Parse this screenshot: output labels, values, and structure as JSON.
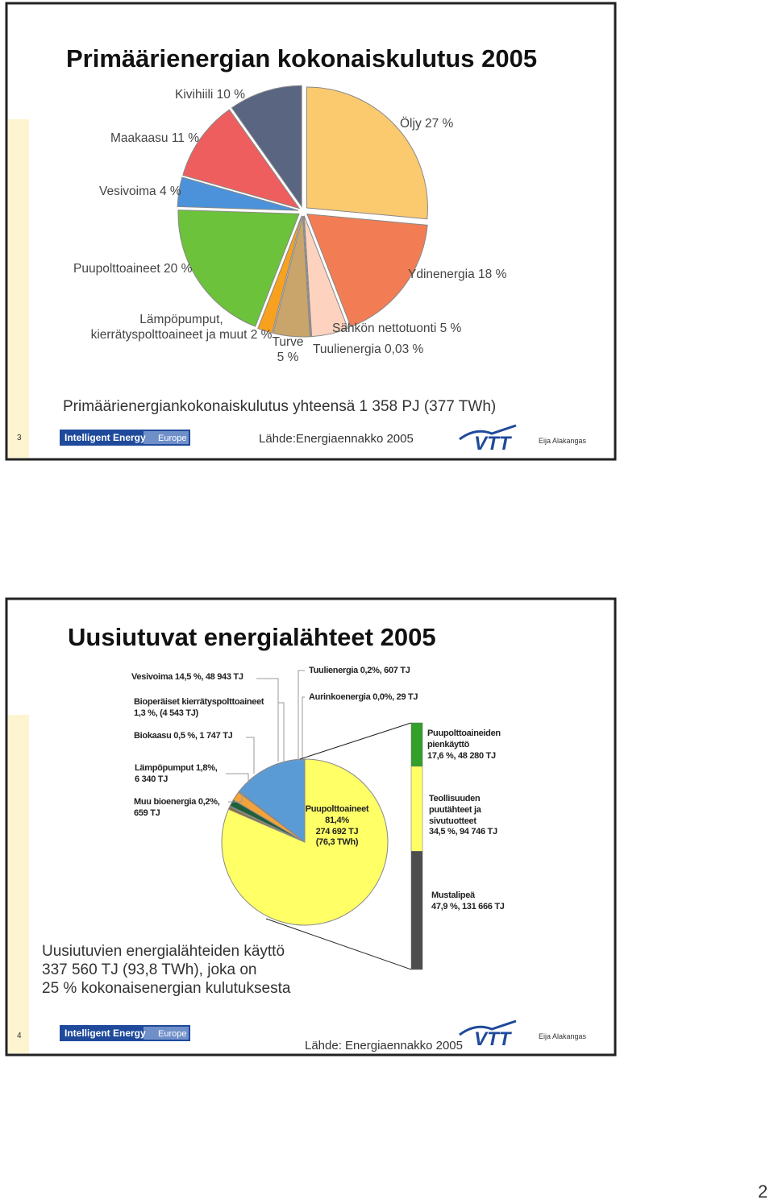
{
  "page_number": "2",
  "slides": [
    {
      "number": "3",
      "source": "Lähde:Energiaennakko 2005",
      "author": "Eija Alakangas",
      "logo": {
        "name": "Intelligent Energy",
        "region": "Europe",
        "brand": "VTT"
      }
    },
    {
      "number": "4",
      "source": "Lähde: Energiaennakko 2005",
      "author": "Eija Alakangas",
      "logo": {
        "name": "Intelligent Energy",
        "region": "Europe",
        "brand": "VTT"
      }
    }
  ],
  "chart_data": [
    {
      "type": "pie",
      "title": "Primäärienergian kokonaiskulutus 2005",
      "subtitle": "Primäärienergiankokonaiskulutus yhteensä  1 358 PJ (377 TWh)",
      "categories": [
        "Öljy 27 %",
        "Ydinenergia 18 %",
        "Sähkön nettotuonti 5 %",
        "Tuulienergia  0,03 %",
        "Turve\n5 %",
        "Lämpöpumput,\nkierrätyspolttoaineet ja muut 2 %",
        "Puupolttoaineet 20  %",
        "Vesivoima 4 %",
        "Maakaasu 11 %",
        "Kivihiili 10 %"
      ],
      "values": [
        27,
        18,
        5,
        0.03,
        5,
        2,
        20,
        4,
        11,
        10
      ],
      "colors": [
        "#fbc96e",
        "#f27d55",
        "#fdd3c0",
        "#ffffff",
        "#c9a46b",
        "#f8a11f",
        "#6cc23a",
        "#4b92da",
        "#ef5e5e",
        "#596581"
      ]
    },
    {
      "type": "pie",
      "title": "Uusiutuvat energialähteet 2005",
      "note": "Uusiutuvien energialähteiden käyttö\n337 560 TJ (93,8 TWh), joka on\n25 % kokonaisenergian kulutuksesta",
      "categories": [
        "Vesivoima 14,5 %, 48 943 TJ",
        "Tuulienergia 0,2%, 607 TJ",
        "Aurinkoenergia  0,0%, 29 TJ",
        "Lämpöpumput 1,8%,\n6 340 TJ",
        "Bioperäiset kierrätyspolttoaineet\n1,3 %, (4 543 TJ)",
        "Muu bioenergia 0,2%,\n659 TJ",
        "Biokaasu  0,5 %, 1 747 TJ",
        "Puupolttoaineet\n81,4%\n274 692 TJ\n(76,3 TWh)"
      ],
      "values": [
        14.5,
        0.2,
        0.0,
        1.8,
        1.3,
        0.2,
        0.5,
        81.4
      ],
      "colors": [
        "#5b9bd5",
        "#c0c0c0",
        "#ffffff",
        "#f4a23a",
        "#1f5f3a",
        "#2e7d32",
        "#8a6d3b",
        "#ffff66"
      ],
      "bar": {
        "categories": [
          "Puupolttoaineiden\npienkäyttö\n17,6 %, 48 280 TJ",
          "Teollisuuden\npuutähteet ja\nsivutuotteet\n34,5 %, 94 746 TJ",
          "Mustalipeä\n47,9 %, 131 666 TJ"
        ],
        "values": [
          17.6,
          34.5,
          47.9
        ],
        "colors": [
          "#33a02c",
          "#ffff66",
          "#4d4d4d"
        ]
      }
    }
  ]
}
